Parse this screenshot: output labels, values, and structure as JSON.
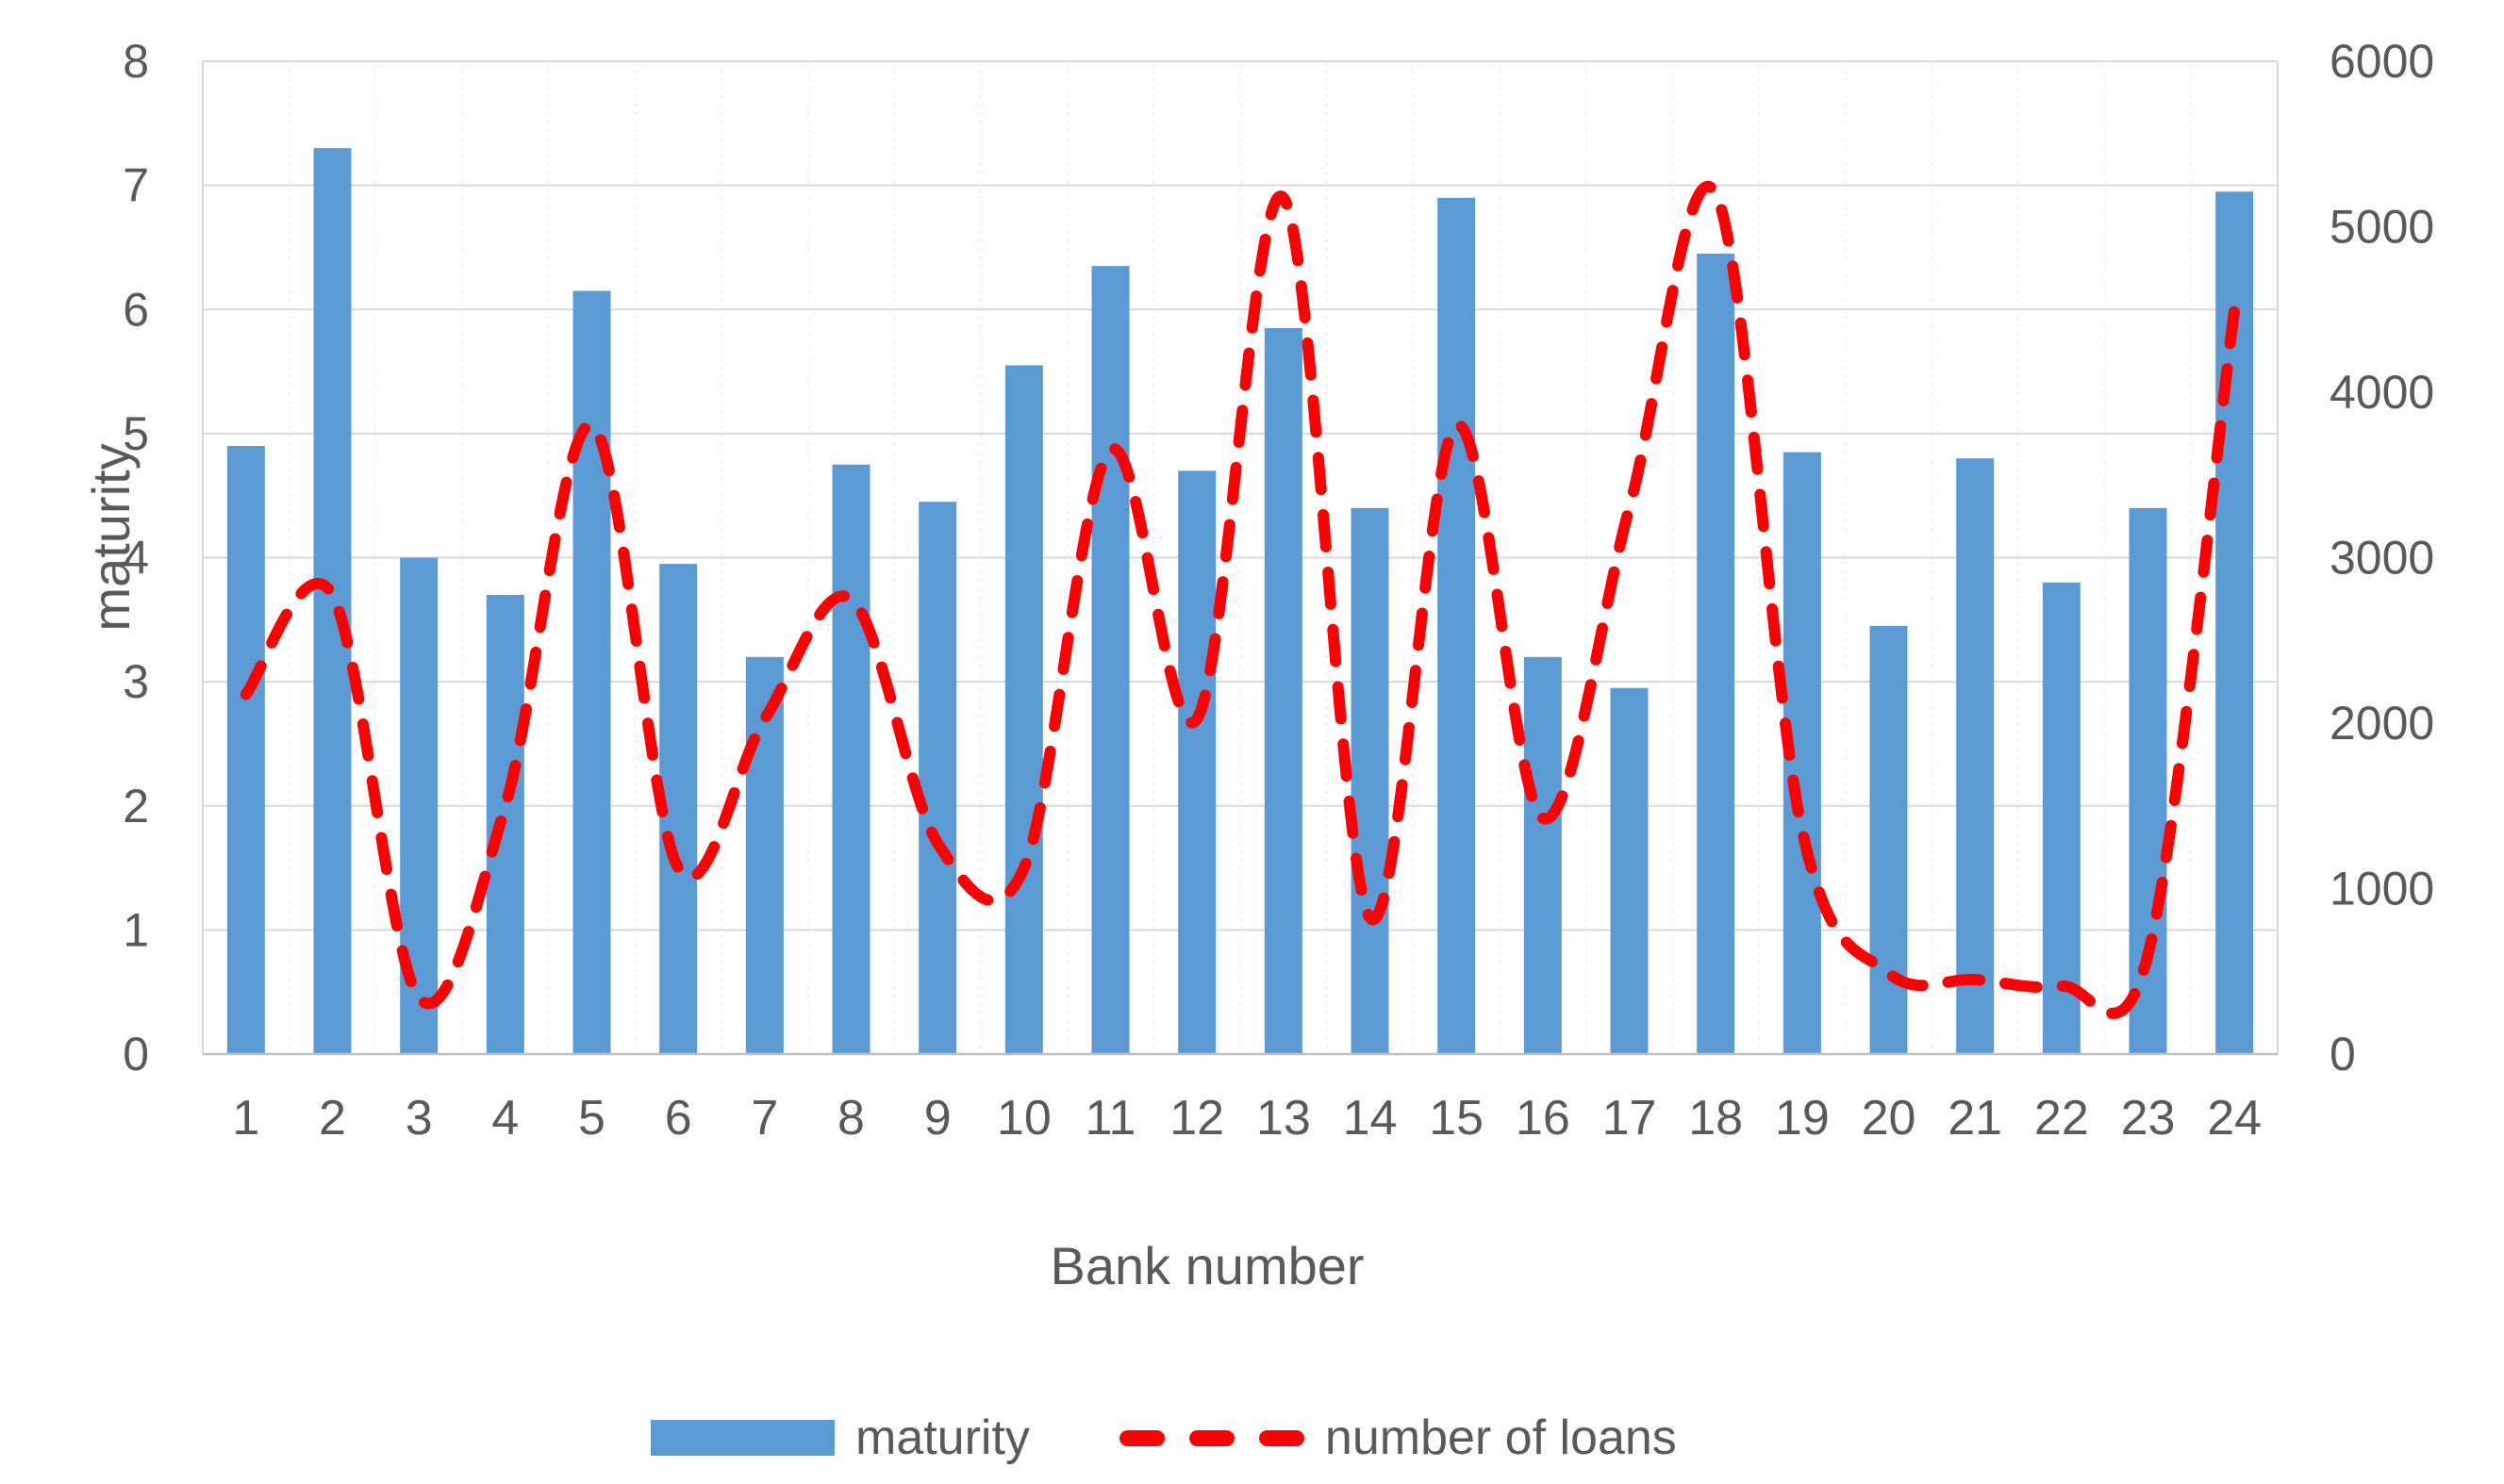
{
  "chart_data": {
    "type": "combo",
    "title": "",
    "xlabel": "Bank number",
    "ylabel_left": "maturity",
    "categories": [
      "1",
      "2",
      "3",
      "4",
      "5",
      "6",
      "7",
      "8",
      "9",
      "10",
      "11",
      "12",
      "13",
      "14",
      "15",
      "16",
      "17",
      "18",
      "19",
      "20",
      "21",
      "22",
      "23",
      "24"
    ],
    "left_axis": {
      "min": 0,
      "max": 8,
      "tick_labels": [
        "0",
        "1",
        "2",
        "3",
        "4",
        "5",
        "6",
        "7",
        "8"
      ]
    },
    "right_axis": {
      "min": 0,
      "max": 6000,
      "tick_labels": [
        "0",
        "1000",
        "2000",
        "3000",
        "4000",
        "5000",
        "6000"
      ]
    },
    "grid": true,
    "legend_position": "bottom",
    "colors": {
      "text": "#595959",
      "gridline": "#D9D9D9",
      "axisline": "#BFBFBF"
    },
    "series": [
      {
        "name": "maturity",
        "type": "bar",
        "axis": "left",
        "color": "#5B9BD5",
        "values": [
          4.9,
          7.3,
          4.0,
          3.7,
          6.15,
          3.95,
          3.2,
          4.75,
          4.45,
          5.55,
          6.35,
          4.7,
          5.85,
          4.4,
          6.9,
          3.2,
          2.95,
          6.45,
          4.85,
          3.45,
          4.8,
          3.8,
          4.4,
          6.95
        ]
      },
      {
        "name": "number of loans",
        "type": "line",
        "dashed": true,
        "axis": "right",
        "color": "#FF0000",
        "values": [
          2175,
          2775,
          340,
          1500,
          3800,
          1125,
          2025,
          2750,
          1275,
          1125,
          3650,
          2025,
          5175,
          825,
          3800,
          1425,
          3300,
          5200,
          1350,
          490,
          450,
          410,
          600,
          4500
        ]
      }
    ]
  }
}
